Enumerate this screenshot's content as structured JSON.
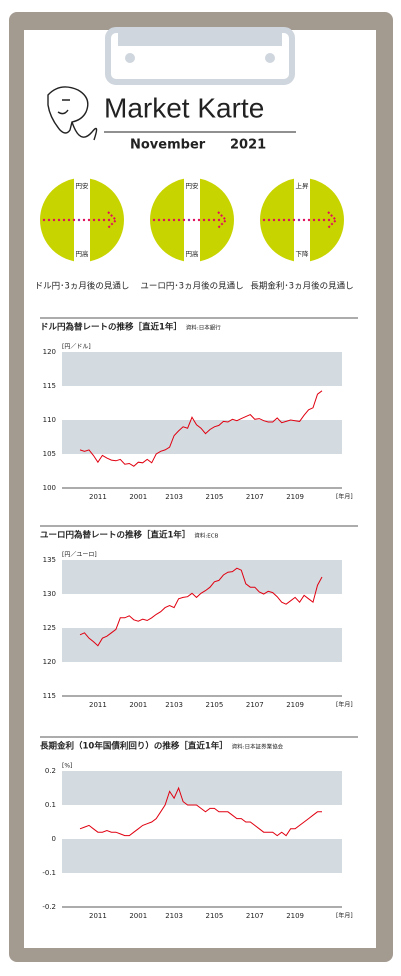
{
  "header": {
    "title": "Market Karte",
    "month": "November",
    "year": "2021"
  },
  "outlooks": [
    {
      "top": "円安",
      "bottom": "円高",
      "caption": "ドル円･3ヵ月後の見通し"
    },
    {
      "top": "円安",
      "bottom": "円高",
      "caption": "ユーロ円･3ヵ月後の見通し"
    },
    {
      "top": "上昇",
      "bottom": "下降",
      "caption": "長期金利･3ヵ月後の見通し"
    }
  ],
  "chart_data": [
    {
      "type": "line",
      "title": "ドル円為替レートの推移［直近1年］",
      "source": "資料:日本銀行",
      "y_label": "[円／ドル]",
      "x_label": "[年月]",
      "categories": [
        null,
        null,
        null,
        null,
        "2011",
        null,
        null,
        null,
        null,
        null,
        null,
        null,
        null,
        "2001",
        null,
        null,
        null,
        null,
        null,
        null,
        null,
        "2103",
        null,
        null,
        null,
        null,
        null,
        null,
        null,
        null,
        "2105",
        null,
        null,
        null,
        null,
        null,
        null,
        null,
        null,
        "2107",
        null,
        null,
        null,
        null,
        null,
        null,
        null,
        null,
        "2109",
        null,
        null,
        null,
        null,
        null,
        null
      ],
      "color": "#e00010",
      "values": [
        105.6,
        105.4,
        105.6,
        104.8,
        103.8,
        104.8,
        104.4,
        104.1,
        104.0,
        104.2,
        103.5,
        103.6,
        103.2,
        103.8,
        103.7,
        104.2,
        103.7,
        105.0,
        105.4,
        105.6,
        106.0,
        107.7,
        108.4,
        109.0,
        108.8,
        110.4,
        109.3,
        108.8,
        108.0,
        108.6,
        109.0,
        109.2,
        109.8,
        109.7,
        110.1,
        109.9,
        110.2,
        110.5,
        110.8,
        110.1,
        110.2,
        109.9,
        109.7,
        109.7,
        110.3,
        109.6,
        109.8,
        110.0,
        109.9,
        109.8,
        110.7,
        111.5,
        111.8,
        113.8,
        114.3
      ],
      "ylim": [
        100,
        120
      ],
      "yticks": [
        100,
        105,
        110,
        115,
        120
      ]
    },
    {
      "type": "line",
      "title": "ユーロ円為替レートの推移［直近1年］",
      "source": "資料:ECB",
      "y_label": "[円／ユーロ]",
      "x_label": "[年月]",
      "categories": [
        null,
        null,
        null,
        null,
        "2011",
        null,
        null,
        null,
        null,
        null,
        null,
        null,
        null,
        "2001",
        null,
        null,
        null,
        null,
        null,
        null,
        null,
        "2103",
        null,
        null,
        null,
        null,
        null,
        null,
        null,
        null,
        "2105",
        null,
        null,
        null,
        null,
        null,
        null,
        null,
        null,
        "2107",
        null,
        null,
        null,
        null,
        null,
        null,
        null,
        null,
        "2109",
        null,
        null,
        null,
        null,
        null,
        null
      ],
      "color": "#e00010",
      "values": [
        124.0,
        124.3,
        123.5,
        123.0,
        122.4,
        123.5,
        123.8,
        124.3,
        124.8,
        126.5,
        126.5,
        126.8,
        126.2,
        126.0,
        126.3,
        126.1,
        126.5,
        127.0,
        127.4,
        128.0,
        128.3,
        128.0,
        129.3,
        129.5,
        129.6,
        130.1,
        129.5,
        130.1,
        130.5,
        131.0,
        131.8,
        132.0,
        132.8,
        133.2,
        133.3,
        133.8,
        133.5,
        131.5,
        131.0,
        131.0,
        130.3,
        130.0,
        130.4,
        130.2,
        129.6,
        128.8,
        128.5,
        129.0,
        129.5,
        128.8,
        129.8,
        129.3,
        128.8,
        131.3,
        132.5
      ],
      "ylim": [
        115,
        135
      ],
      "yticks": [
        115,
        120,
        125,
        130,
        135
      ]
    },
    {
      "type": "line",
      "title": "長期金利（10年国債利回り）の推移［直近1年］",
      "source": "資料:日本証券業協会",
      "y_label": "[%]",
      "x_label": "[年月]",
      "categories": [
        null,
        null,
        null,
        null,
        "2011",
        null,
        null,
        null,
        null,
        null,
        null,
        null,
        null,
        "2001",
        null,
        null,
        null,
        null,
        null,
        null,
        null,
        "2103",
        null,
        null,
        null,
        null,
        null,
        null,
        null,
        null,
        "2105",
        null,
        null,
        null,
        null,
        null,
        null,
        null,
        null,
        "2107",
        null,
        null,
        null,
        null,
        null,
        null,
        null,
        null,
        "2109",
        null,
        null,
        null,
        null,
        null,
        null
      ],
      "color": "#e00010",
      "values": [
        0.03,
        0.035,
        0.04,
        0.03,
        0.02,
        0.02,
        0.025,
        0.02,
        0.02,
        0.015,
        0.01,
        0.01,
        0.02,
        0.03,
        0.04,
        0.045,
        0.05,
        0.06,
        0.08,
        0.1,
        0.14,
        0.12,
        0.15,
        0.11,
        0.1,
        0.1,
        0.1,
        0.09,
        0.08,
        0.09,
        0.09,
        0.08,
        0.08,
        0.08,
        0.07,
        0.06,
        0.06,
        0.05,
        0.05,
        0.04,
        0.03,
        0.02,
        0.02,
        0.02,
        0.01,
        0.02,
        0.01,
        0.03,
        0.03,
        0.04,
        0.05,
        0.06,
        0.07,
        0.08,
        0.08
      ],
      "ylim": [
        -0.2,
        0.2
      ],
      "yticks": [
        -0.2,
        -0.1,
        0,
        0.1,
        0.2
      ]
    }
  ]
}
